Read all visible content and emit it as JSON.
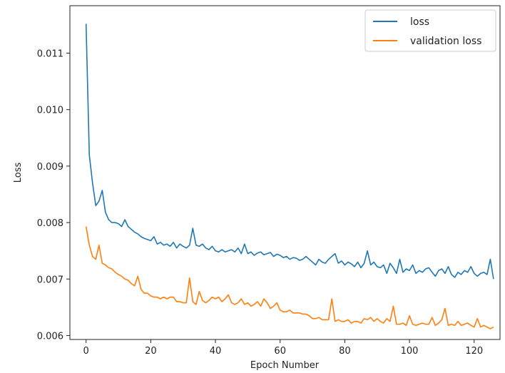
{
  "chart_data": {
    "type": "line",
    "xlabel": "Epoch Number",
    "ylabel": "Loss",
    "xlim": [
      -5,
      128
    ],
    "ylim": [
      0.00593,
      0.01184
    ],
    "xticks": [
      "0",
      "20",
      "40",
      "60",
      "80",
      "100",
      "120"
    ],
    "yticks": [
      "0.006",
      "0.007",
      "0.008",
      "0.009",
      "0.010",
      "0.011"
    ],
    "grid": false,
    "legend_position": "top-right",
    "series": [
      {
        "name": "loss",
        "color": "#1f77b4",
        "x": [
          0,
          1,
          2,
          3,
          4,
          5,
          6,
          7,
          8,
          9,
          10,
          11,
          12,
          13,
          14,
          15,
          16,
          17,
          18,
          19,
          20,
          21,
          22,
          23,
          24,
          25,
          26,
          27,
          28,
          29,
          30,
          31,
          32,
          33,
          34,
          35,
          36,
          37,
          38,
          39,
          40,
          41,
          42,
          43,
          44,
          45,
          46,
          47,
          48,
          49,
          50,
          51,
          52,
          53,
          54,
          55,
          56,
          57,
          58,
          59,
          60,
          61,
          62,
          63,
          64,
          65,
          66,
          67,
          68,
          69,
          70,
          71,
          72,
          73,
          74,
          75,
          76,
          77,
          78,
          79,
          80,
          81,
          82,
          83,
          84,
          85,
          86,
          87,
          88,
          89,
          90,
          91,
          92,
          93,
          94,
          95,
          96,
          97,
          98,
          99,
          100,
          101,
          102,
          103,
          104,
          105,
          106,
          107,
          108,
          109,
          110,
          111,
          112,
          113,
          114,
          115,
          116,
          117,
          118,
          119,
          120,
          121,
          122,
          123,
          124,
          125,
          126
        ],
        "y": [
          0.01152,
          0.0092,
          0.0087,
          0.0083,
          0.00838,
          0.00857,
          0.00818,
          0.00805,
          0.008,
          0.008,
          0.00798,
          0.00793,
          0.00805,
          0.00793,
          0.00788,
          0.00783,
          0.0078,
          0.00775,
          0.00772,
          0.0077,
          0.00768,
          0.00775,
          0.00762,
          0.00765,
          0.0076,
          0.00762,
          0.00758,
          0.00765,
          0.00755,
          0.00762,
          0.00758,
          0.00755,
          0.0076,
          0.0079,
          0.0076,
          0.00758,
          0.00762,
          0.00755,
          0.00752,
          0.00758,
          0.0075,
          0.00748,
          0.00752,
          0.00748,
          0.0075,
          0.00752,
          0.00748,
          0.00755,
          0.00745,
          0.00762,
          0.00745,
          0.00748,
          0.00742,
          0.00746,
          0.00748,
          0.00743,
          0.00745,
          0.00747,
          0.0074,
          0.00744,
          0.00742,
          0.00738,
          0.0074,
          0.00735,
          0.00738,
          0.00737,
          0.00733,
          0.00735,
          0.0074,
          0.00735,
          0.0073,
          0.00725,
          0.00735,
          0.0073,
          0.00728,
          0.00735,
          0.0074,
          0.00745,
          0.00728,
          0.00732,
          0.00725,
          0.0073,
          0.00727,
          0.00722,
          0.0073,
          0.0072,
          0.00728,
          0.0075,
          0.00725,
          0.0073,
          0.00722,
          0.0072,
          0.00725,
          0.0071,
          0.00728,
          0.0072,
          0.0071,
          0.00735,
          0.00712,
          0.00718,
          0.00715,
          0.00725,
          0.0071,
          0.00715,
          0.00712,
          0.00718,
          0.0072,
          0.00712,
          0.00705,
          0.00715,
          0.00718,
          0.0071,
          0.00722,
          0.00708,
          0.00703,
          0.00712,
          0.00708,
          0.00715,
          0.00712,
          0.00722,
          0.0071,
          0.00705,
          0.0071,
          0.00712,
          0.00708,
          0.00735,
          0.007
        ]
      },
      {
        "name": "validation loss",
        "color": "#ff7f0e",
        "x": [
          0,
          1,
          2,
          3,
          4,
          5,
          6,
          7,
          8,
          9,
          10,
          11,
          12,
          13,
          14,
          15,
          16,
          17,
          18,
          19,
          20,
          21,
          22,
          23,
          24,
          25,
          26,
          27,
          28,
          29,
          30,
          31,
          32,
          33,
          34,
          35,
          36,
          37,
          38,
          39,
          40,
          41,
          42,
          43,
          44,
          45,
          46,
          47,
          48,
          49,
          50,
          51,
          52,
          53,
          54,
          55,
          56,
          57,
          58,
          59,
          60,
          61,
          62,
          63,
          64,
          65,
          66,
          67,
          68,
          69,
          70,
          71,
          72,
          73,
          74,
          75,
          76,
          77,
          78,
          79,
          80,
          81,
          82,
          83,
          84,
          85,
          86,
          87,
          88,
          89,
          90,
          91,
          92,
          93,
          94,
          95,
          96,
          97,
          98,
          99,
          100,
          101,
          102,
          103,
          104,
          105,
          106,
          107,
          108,
          109,
          110,
          111,
          112,
          113,
          114,
          115,
          116,
          117,
          118,
          119,
          120,
          121,
          122,
          123,
          124,
          125,
          126
        ],
        "y": [
          0.00793,
          0.0076,
          0.0074,
          0.00735,
          0.0076,
          0.00728,
          0.00725,
          0.0072,
          0.00718,
          0.00712,
          0.00708,
          0.00705,
          0.007,
          0.00698,
          0.00692,
          0.00688,
          0.00705,
          0.00682,
          0.00675,
          0.00675,
          0.0067,
          0.00668,
          0.00668,
          0.00665,
          0.00668,
          0.00665,
          0.00668,
          0.00668,
          0.0066,
          0.0066,
          0.00658,
          0.00658,
          0.00702,
          0.0066,
          0.00655,
          0.00678,
          0.00662,
          0.00658,
          0.00662,
          0.00668,
          0.00665,
          0.00668,
          0.0066,
          0.00665,
          0.00672,
          0.00658,
          0.00655,
          0.00658,
          0.00665,
          0.00655,
          0.00658,
          0.00652,
          0.00655,
          0.0066,
          0.00652,
          0.00665,
          0.00658,
          0.00648,
          0.00652,
          0.00658,
          0.00645,
          0.00642,
          0.00642,
          0.00645,
          0.0064,
          0.0064,
          0.0064,
          0.00638,
          0.00638,
          0.00635,
          0.0063,
          0.0063,
          0.00632,
          0.00628,
          0.00628,
          0.00628,
          0.00665,
          0.00625,
          0.00628,
          0.00625,
          0.00625,
          0.00628,
          0.00622,
          0.00625,
          0.00625,
          0.00622,
          0.0063,
          0.00628,
          0.00632,
          0.00625,
          0.0063,
          0.00625,
          0.00622,
          0.0063,
          0.00625,
          0.00652,
          0.0062,
          0.0062,
          0.00622,
          0.00618,
          0.00635,
          0.0062,
          0.00618,
          0.0062,
          0.00622,
          0.0062,
          0.0062,
          0.00632,
          0.00618,
          0.00622,
          0.00628,
          0.00648,
          0.00618,
          0.0062,
          0.00618,
          0.00625,
          0.00618,
          0.0062,
          0.00622,
          0.00618,
          0.00615,
          0.0063,
          0.00615,
          0.00618,
          0.00615,
          0.00612,
          0.00615
        ]
      }
    ]
  }
}
